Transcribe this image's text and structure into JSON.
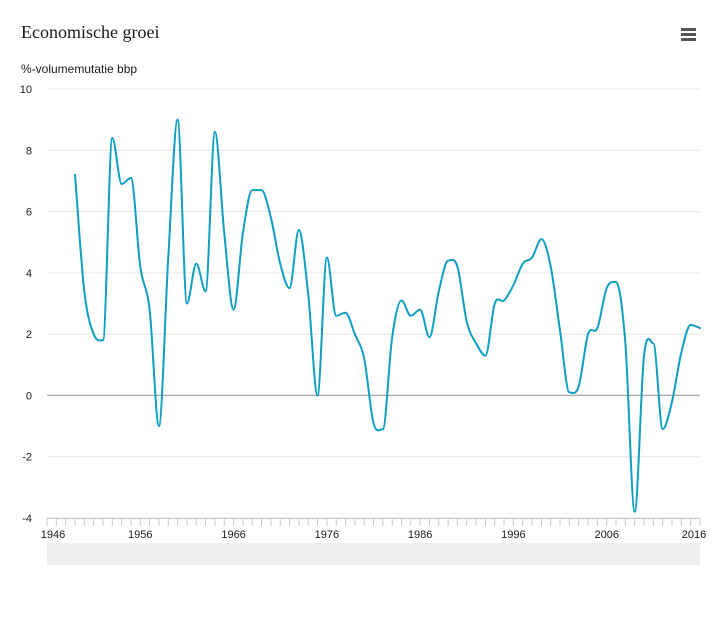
{
  "header": {
    "title": "Economische groei",
    "menu_icon": "hamburger-menu-icon"
  },
  "chart_data": {
    "type": "line",
    "title": "Economische groei",
    "ylabel": "%-volumemutatie bbp",
    "xlabel": "",
    "xlim": [
      1946,
      2016
    ],
    "ylim": [
      -4,
      10
    ],
    "y_ticks": [
      "10",
      "8",
      "6",
      "4",
      "2",
      "0",
      "-2",
      "-4"
    ],
    "x_ticks": [
      "1946",
      "1956",
      "1966",
      "1976",
      "1986",
      "1996",
      "2006",
      "2016"
    ],
    "grid": true,
    "series": [
      {
        "color": "#0e9fc1",
        "x": [
          1949,
          1950,
          1951,
          1952,
          1953,
          1954,
          1955,
          1956,
          1957,
          1958,
          1959,
          1960,
          1961,
          1962,
          1963,
          1964,
          1965,
          1966,
          1967,
          1968,
          1969,
          1970,
          1971,
          1972,
          1973,
          1974,
          1975,
          1976,
          1977,
          1978,
          1979,
          1980,
          1981,
          1982,
          1983,
          1984,
          1985,
          1986,
          1987,
          1988,
          1989,
          1990,
          1991,
          1992,
          1993,
          1994,
          1995,
          1996,
          1997,
          1998,
          1999,
          2000,
          2001,
          2002,
          2003,
          2004,
          2005,
          2006,
          2007,
          2008,
          2009,
          2010,
          2011,
          2012,
          2013,
          2014,
          2015,
          2016
        ],
        "values": [
          7.2,
          3.4,
          2.0,
          1.8,
          8.4,
          6.9,
          7.1,
          4.2,
          2.8,
          -1.0,
          4.5,
          9.0,
          3.0,
          4.3,
          3.4,
          8.6,
          5.3,
          2.8,
          5.3,
          6.7,
          6.7,
          5.8,
          4.3,
          3.5,
          5.4,
          3.3,
          0.0,
          4.5,
          2.6,
          2.7,
          2.0,
          1.2,
          -0.9,
          -1.1,
          1.9,
          3.1,
          2.6,
          2.8,
          1.9,
          3.4,
          4.4,
          4.2,
          2.4,
          1.7,
          1.3,
          3.0,
          3.1,
          3.6,
          4.3,
          4.5,
          5.1,
          4.2,
          2.1,
          0.1,
          0.3,
          2.0,
          2.2,
          3.5,
          3.7,
          1.7,
          -3.8,
          1.3,
          1.7,
          -1.1,
          -0.2,
          1.4,
          2.3,
          2.2
        ]
      }
    ]
  }
}
